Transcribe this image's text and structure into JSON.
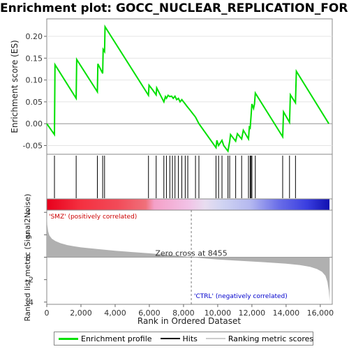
{
  "title": "Enrichment plot: GOCC_NUCLEAR_REPLICATION_FORK",
  "colors": {
    "profile": "#00e000",
    "hits": "#000000",
    "metric_fill": "#b0b0b0",
    "zero_line": "#888888",
    "pos_label": "#cc0000",
    "neg_label": "#0000cc"
  },
  "chart_data": [
    {
      "type": "line",
      "name": "enrichment",
      "ylabel": "Enrichment score (ES)",
      "xlim": [
        0,
        16700
      ],
      "ylim": [
        -0.07,
        0.24
      ],
      "yticks": [
        -0.05,
        0.0,
        0.05,
        0.1,
        0.15,
        0.2
      ],
      "ytick_labels": [
        "-0.05",
        "0.00",
        "0.05",
        "0.10",
        "0.15",
        "0.20"
      ],
      "series": [
        {
          "name": "Enrichment profile",
          "x": [
            0,
            450,
            480,
            1720,
            1750,
            2960,
            2990,
            3270,
            3300,
            3380,
            3410,
            5950,
            5980,
            6180,
            6400,
            6430,
            6850,
            6940,
            7000,
            7100,
            7200,
            7300,
            7400,
            7500,
            7600,
            7700,
            7800,
            7900,
            8000,
            8100,
            8200,
            8300,
            8700,
            8900,
            9900,
            9950,
            10050,
            10250,
            10350,
            10600,
            10700,
            10750,
            11050,
            11150,
            11400,
            11500,
            11800,
            11850,
            11900,
            11950,
            12000,
            12100,
            12150,
            12200,
            13800,
            13850,
            14200,
            14250,
            14550,
            14600,
            16500
          ],
          "y": [
            0.0,
            -0.025,
            0.135,
            0.058,
            0.147,
            0.073,
            0.137,
            0.115,
            0.17,
            0.165,
            0.222,
            0.065,
            0.088,
            0.078,
            0.066,
            0.082,
            0.05,
            0.062,
            0.058,
            0.065,
            0.062,
            0.063,
            0.058,
            0.063,
            0.055,
            0.058,
            0.05,
            0.055,
            0.05,
            0.045,
            0.04,
            0.035,
            0.015,
            0.0,
            -0.055,
            -0.038,
            -0.05,
            -0.038,
            -0.05,
            -0.063,
            -0.04,
            -0.025,
            -0.04,
            -0.023,
            -0.035,
            -0.015,
            -0.035,
            -0.008,
            -0.01,
            0.018,
            0.045,
            0.035,
            0.045,
            0.07,
            -0.03,
            0.027,
            0.003,
            0.066,
            0.048,
            0.12,
            0.0
          ]
        }
      ]
    },
    {
      "type": "scatter",
      "name": "hits",
      "xlim": [
        0,
        16700
      ],
      "x": [
        450,
        1720,
        2960,
        3270,
        3380,
        5950,
        6400,
        6850,
        7000,
        7200,
        7350,
        7500,
        7700,
        7900,
        8100,
        8250,
        8700,
        8900,
        9900,
        10050,
        10250,
        10600,
        10700,
        11050,
        11400,
        11800,
        11900,
        11950,
        12000,
        12200,
        13800,
        14200,
        14550
      ]
    },
    {
      "type": "area",
      "name": "ranked-metric",
      "ylabel": "Ranked list metric (Signal2Noise)",
      "xlabel": "Rank in Ordered Dataset",
      "xlim": [
        0,
        16700
      ],
      "ylim": [
        -4.2,
        4.2
      ],
      "xticks": [
        0,
        2000,
        4000,
        6000,
        8000,
        10000,
        12000,
        14000,
        16000
      ],
      "xtick_labels": [
        "0",
        "2,000",
        "4,000",
        "6,000",
        "8,000",
        "10,000",
        "12,000",
        "14,000",
        "16,000"
      ],
      "yticks": [
        -4,
        -2,
        0,
        2,
        4
      ],
      "ytick_labels": [
        "-4",
        "-2",
        "0",
        "2",
        "4"
      ],
      "x": [
        0,
        30,
        80,
        150,
        300,
        500,
        800,
        1200,
        1600,
        2000,
        3000,
        4000,
        5000,
        6000,
        7000,
        8000,
        8455,
        9000,
        10000,
        11000,
        12000,
        13000,
        14000,
        14800,
        15400,
        15800,
        16100,
        16300,
        16420,
        16500,
        16550
      ],
      "values": [
        4.2,
        2.9,
        2.3,
        1.95,
        1.65,
        1.45,
        1.25,
        1.08,
        0.97,
        0.88,
        0.72,
        0.58,
        0.46,
        0.35,
        0.22,
        0.08,
        0.0,
        -0.08,
        -0.2,
        -0.3,
        -0.38,
        -0.47,
        -0.58,
        -0.7,
        -0.85,
        -1.05,
        -1.3,
        -1.65,
        -2.2,
        -3.0,
        -3.9
      ],
      "zero_cross": 8455,
      "zero_cross_label": "Zero cross at 8455",
      "pos_label": "'SMZ' (positively correlated)",
      "neg_label": "'CTRL' (negatively correlated)"
    }
  ],
  "legend": {
    "items": [
      {
        "label": "Enrichment profile",
        "color": "#00e000"
      },
      {
        "label": "Hits",
        "color": "#000000"
      },
      {
        "label": "Ranking metric scores",
        "color": "#cccccc"
      }
    ]
  }
}
